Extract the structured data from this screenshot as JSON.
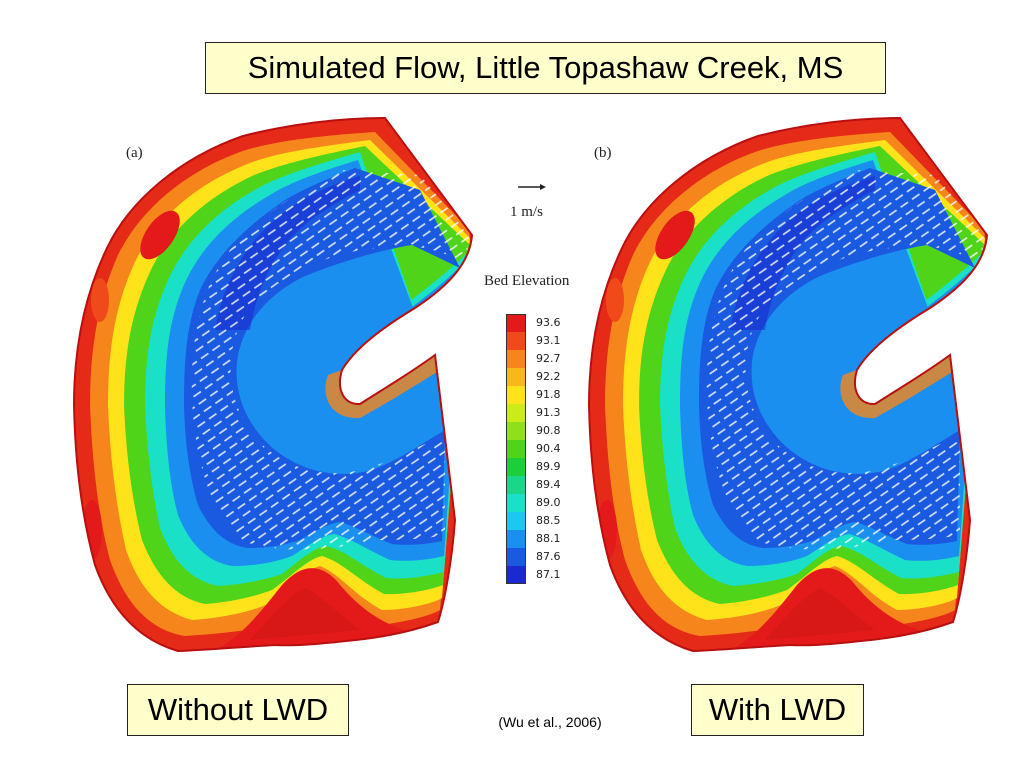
{
  "title": "Simulated Flow, Little Topashaw Creek, MS",
  "panels": {
    "a": {
      "label": "(a)",
      "caption": "Without LWD"
    },
    "b": {
      "label": "(b)",
      "caption": "With LWD"
    }
  },
  "scale": {
    "label": "1 m/s"
  },
  "legend": {
    "title": "Bed Elevation",
    "levels": [
      {
        "value": "93.6",
        "color": "#e41a1a"
      },
      {
        "value": "93.1",
        "color": "#f04a1a"
      },
      {
        "value": "92.7",
        "color": "#f6861c"
      },
      {
        "value": "92.2",
        "color": "#f9b81a"
      },
      {
        "value": "91.8",
        "color": "#ffe31a"
      },
      {
        "value": "91.3",
        "color": "#ccec1a"
      },
      {
        "value": "90.8",
        "color": "#8fe01a"
      },
      {
        "value": "90.4",
        "color": "#4fd41a"
      },
      {
        "value": "89.9",
        "color": "#1ccf3a"
      },
      {
        "value": "89.4",
        "color": "#1ad68a"
      },
      {
        "value": "89.0",
        "color": "#1ae0c8"
      },
      {
        "value": "88.5",
        "color": "#1ac8f0"
      },
      {
        "value": "88.1",
        "color": "#1a8ff0"
      },
      {
        "value": "87.6",
        "color": "#1a5ae0"
      },
      {
        "value": "87.1",
        "color": "#1a2ad0"
      }
    ]
  },
  "citation": "(Wu et al., 2006)"
}
